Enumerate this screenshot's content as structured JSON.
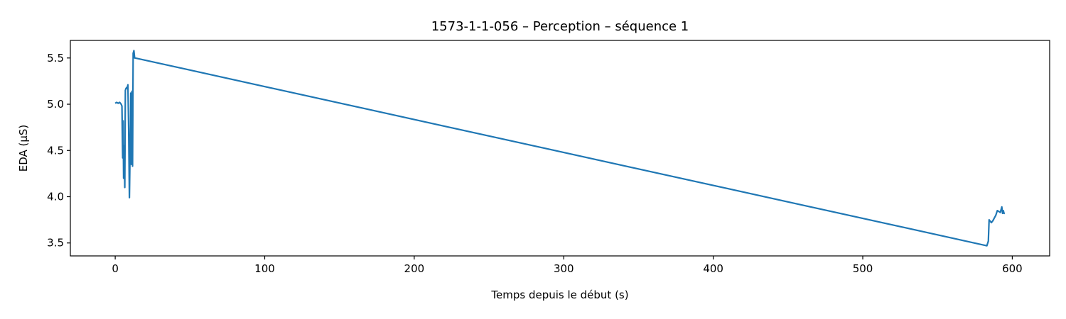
{
  "chart_data": {
    "type": "line",
    "title": "1573-1-1-056 – Perception – séquence 1",
    "xlabel": "Temps depuis le début (s)",
    "ylabel": "EDA (µS)",
    "xlim": [
      -30,
      625
    ],
    "ylim": [
      3.36,
      5.69
    ],
    "xticks": [
      0,
      100,
      200,
      300,
      400,
      500,
      600
    ],
    "xtick_labels": [
      "0",
      "100",
      "200",
      "300",
      "400",
      "500",
      "600"
    ],
    "yticks": [
      3.5,
      4.0,
      4.5,
      5.0,
      5.5
    ],
    "ytick_labels": [
      "3.5",
      "4.0",
      "4.5",
      "5.0",
      "5.5"
    ],
    "grid": false,
    "line_color": "#1f77b4",
    "series": [
      {
        "x": [
          0,
          1,
          2,
          3,
          4,
          4.5,
          5,
          5.3,
          5.6,
          6,
          6.4,
          6.8,
          7.2,
          7.6,
          8,
          8.5,
          9,
          9.5,
          10,
          10.4,
          10.8,
          11.2,
          11.6,
          12,
          12.5,
          13,
          13.3,
          583,
          584,
          584.5,
          585,
          586,
          587,
          588,
          589,
          590,
          591,
          592,
          593,
          593.5,
          594,
          594.5,
          595
        ],
        "y": [
          5.01,
          5.02,
          5.01,
          5.02,
          5.0,
          4.98,
          4.42,
          4.82,
          4.2,
          4.55,
          4.1,
          5.15,
          5.17,
          5.18,
          5.17,
          5.21,
          4.72,
          3.99,
          4.55,
          5.12,
          4.35,
          5.14,
          4.33,
          5.55,
          5.58,
          5.5,
          5.5,
          3.47,
          3.52,
          3.75,
          3.74,
          3.72,
          3.74,
          3.77,
          3.8,
          3.85,
          3.84,
          3.83,
          3.89,
          3.82,
          3.85,
          3.82,
          3.82
        ]
      }
    ]
  }
}
